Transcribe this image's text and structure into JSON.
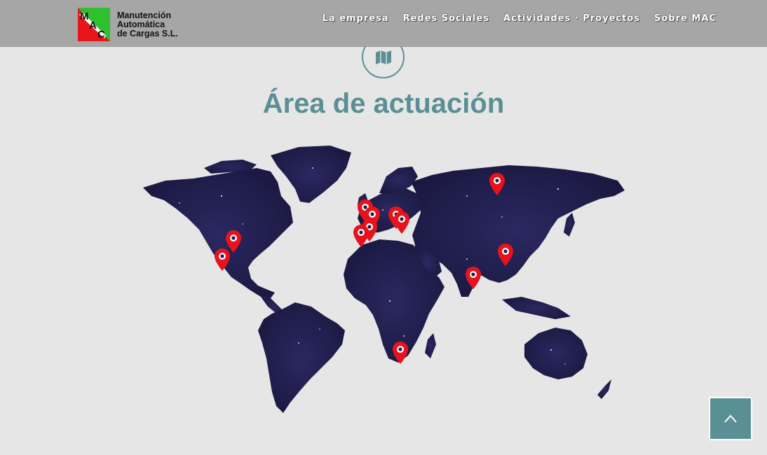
{
  "header": {
    "logo": {
      "letters": [
        "M",
        "A",
        "C"
      ],
      "lines": [
        "Manutención",
        "Automática",
        "de Cargas S.L."
      ],
      "colors": {
        "green": "#2fbf2f",
        "red": "#e8161b",
        "white": "#ffffff"
      }
    },
    "nav": [
      {
        "label": "La empresa"
      },
      {
        "label": "Redes Sociales"
      },
      {
        "label": "Actividades · Proyectos"
      },
      {
        "label": "Sobre MAC"
      }
    ]
  },
  "section": {
    "icon": "map-icon",
    "title": "Área de actuación"
  },
  "map": {
    "land_color": "#1f1d4a",
    "pin_color": "#e8121c",
    "pins": [
      {
        "name": "pin-usa"
      },
      {
        "name": "pin-mexico"
      },
      {
        "name": "pin-uk"
      },
      {
        "name": "pin-france"
      },
      {
        "name": "pin-spain-north"
      },
      {
        "name": "pin-portugal"
      },
      {
        "name": "pin-germany"
      },
      {
        "name": "pin-italy"
      },
      {
        "name": "pin-russia"
      },
      {
        "name": "pin-india"
      },
      {
        "name": "pin-china"
      },
      {
        "name": "pin-south-africa"
      }
    ]
  },
  "back_to_top": {
    "icon": "chevron-up-icon"
  },
  "colors": {
    "accent": "#5a8f95",
    "background": "#e6e6e6",
    "header": "#a6a6a6"
  }
}
